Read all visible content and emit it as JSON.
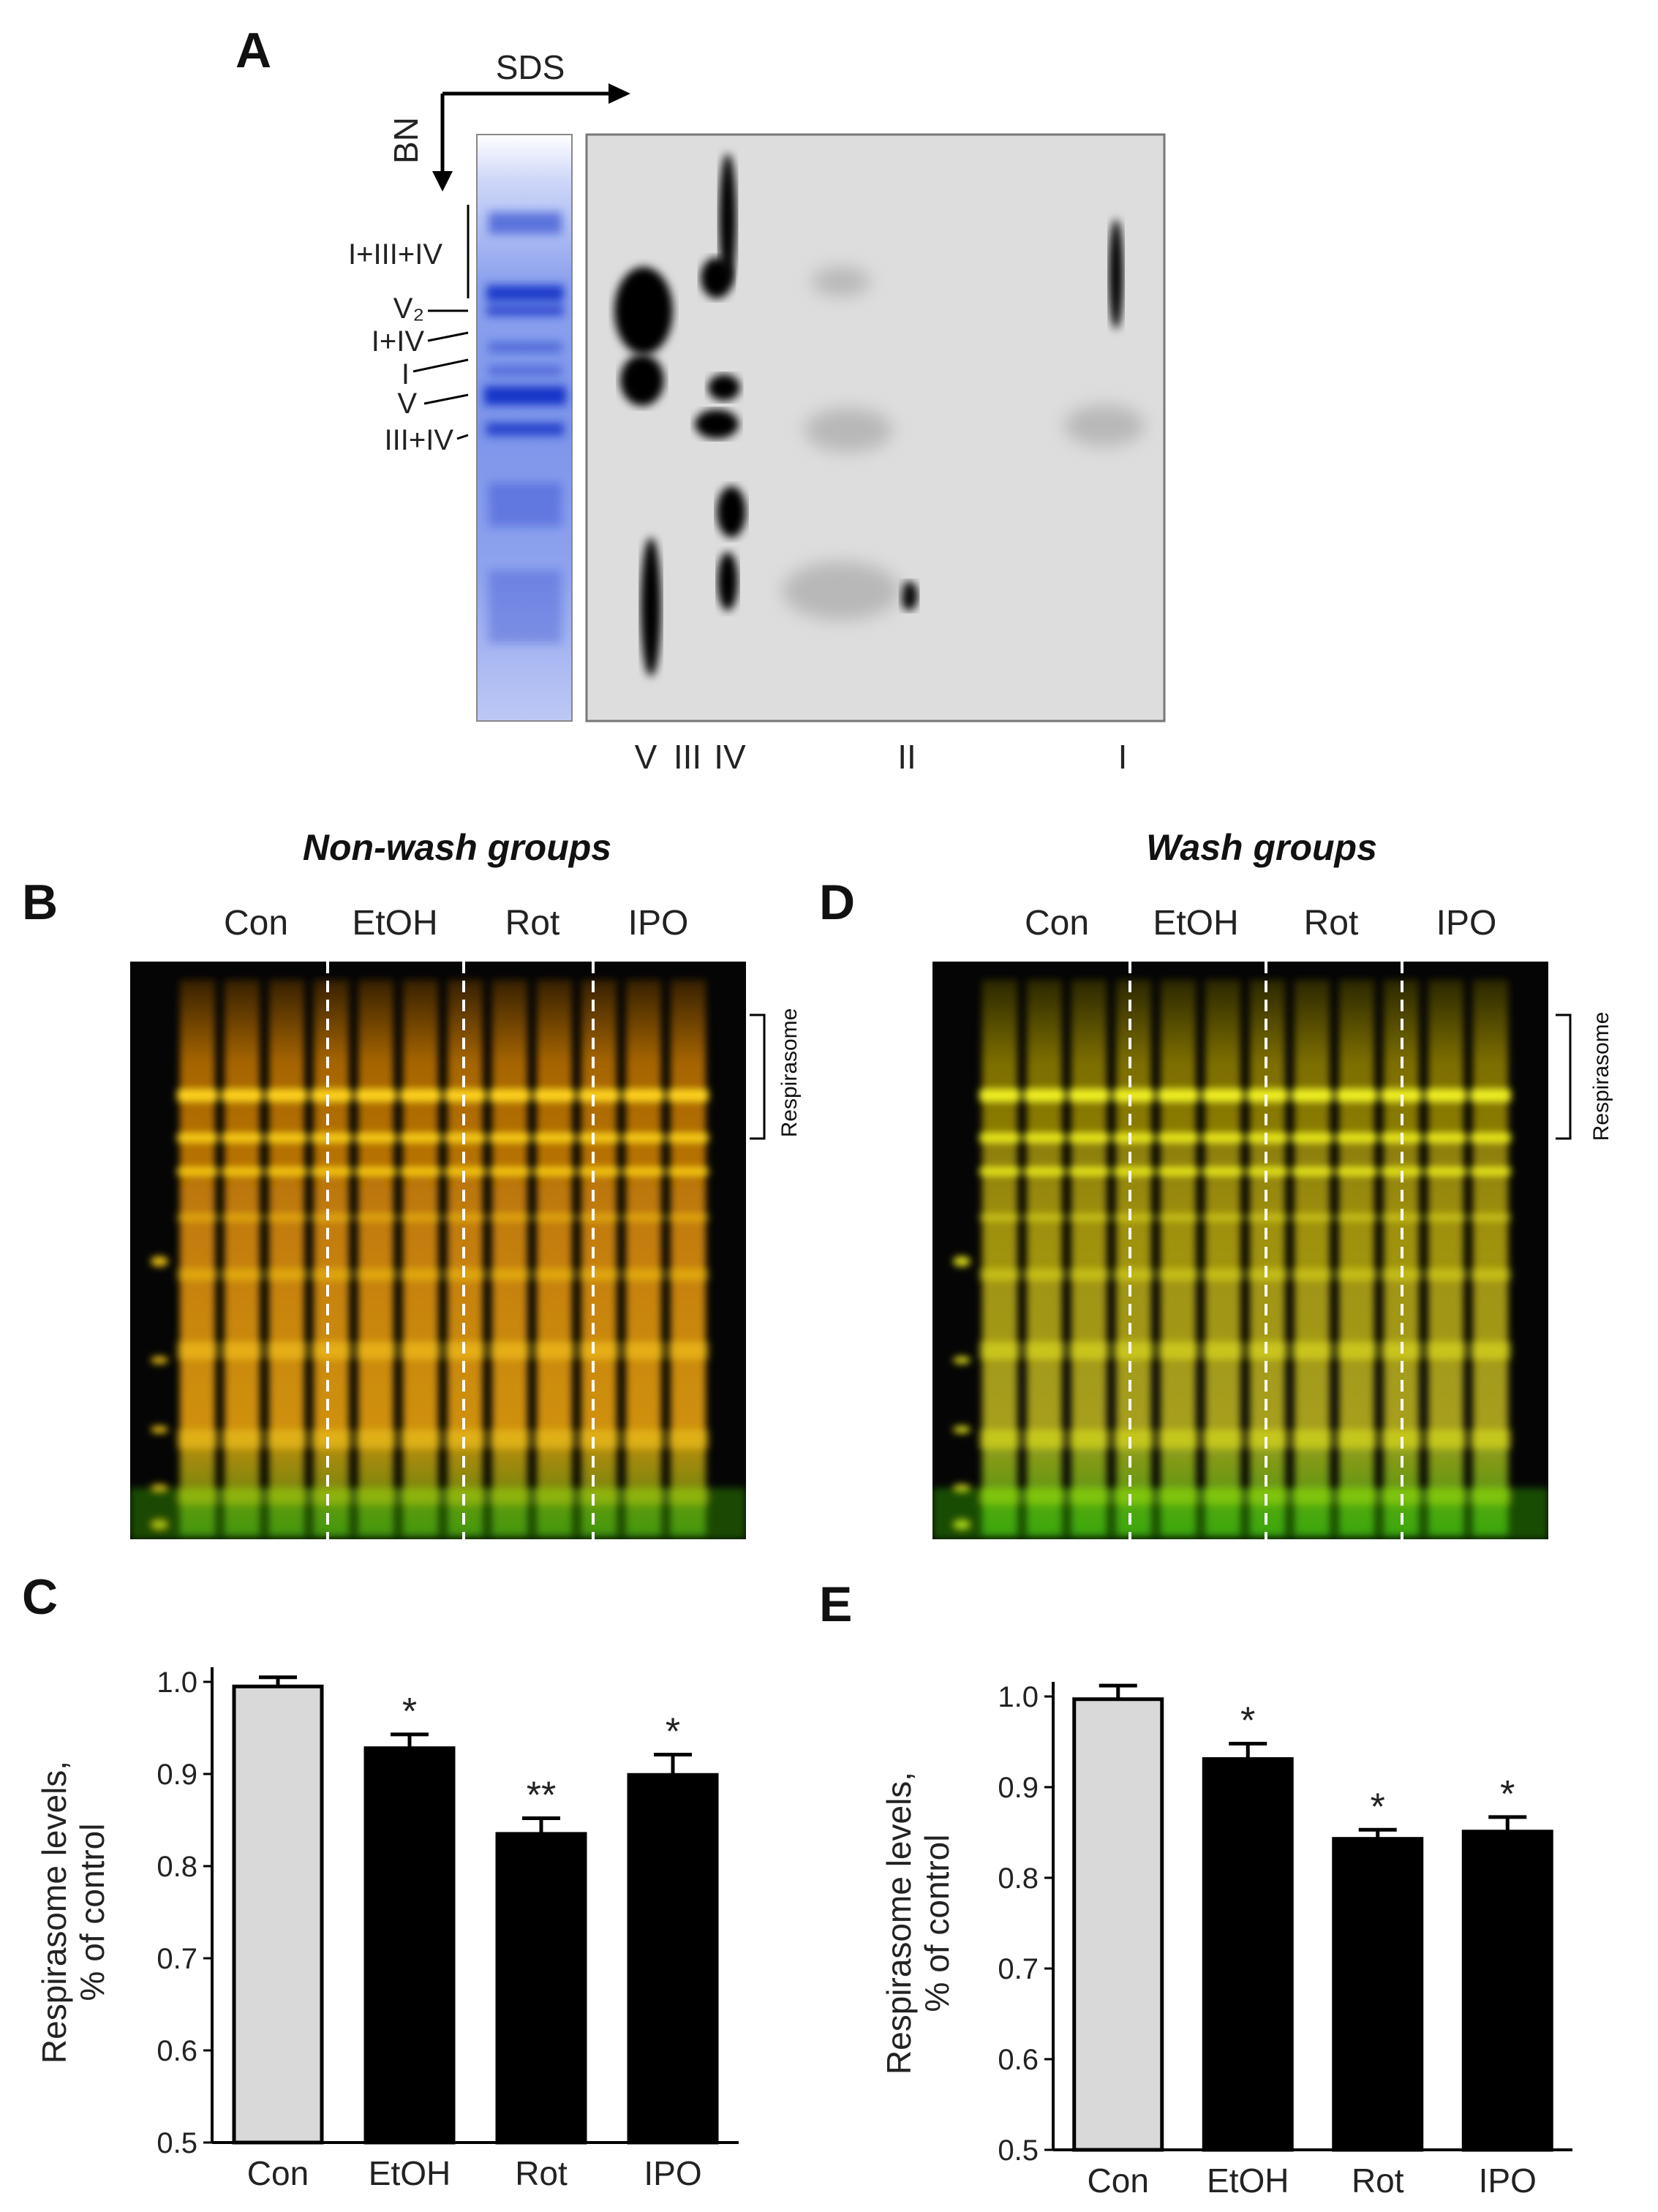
{
  "panels": {
    "A": "A",
    "B": "B",
    "C": "C",
    "D": "D",
    "E": "E"
  },
  "panel_a": {
    "sds": "SDS",
    "bn": "BN",
    "complex_labels": [
      "I+III+IV",
      "V₂",
      "I+IV",
      "I",
      "V",
      "III+IV"
    ],
    "bottom_labels": [
      "V",
      "III",
      "IV",
      "II",
      "I"
    ]
  },
  "panel_b": {
    "title": "Non-wash groups",
    "groups": [
      "Con",
      "EtOH",
      "Rot",
      "IPO"
    ],
    "bracket_label": "Respirasome"
  },
  "panel_d": {
    "title": "Wash groups",
    "groups": [
      "Con",
      "EtOH",
      "Rot",
      "IPO"
    ],
    "bracket_label": "Respirasome"
  },
  "chart_data": [
    {
      "type": "bar",
      "panel": "C",
      "categories": [
        "Con",
        "EtOH",
        "Rot",
        "IPO"
      ],
      "values": [
        0.995,
        0.928,
        0.835,
        0.899
      ],
      "errors": [
        0.01,
        0.015,
        0.017,
        0.022
      ],
      "significance": [
        "",
        "*",
        "**",
        "*"
      ],
      "colors": [
        "#d9d9d9",
        "#000000",
        "#000000",
        "#000000"
      ],
      "ylabel": "Respirasome levels,\n% of control",
      "ylim": [
        0.5,
        1.0
      ],
      "yticks": [
        "0.5",
        "0.6",
        "0.7",
        "0.8",
        "0.9",
        "1.0"
      ]
    },
    {
      "type": "bar",
      "panel": "E",
      "categories": [
        "Con",
        "EtOH",
        "Rot",
        "IPO"
      ],
      "values": [
        0.997,
        0.931,
        0.843,
        0.851
      ],
      "errors": [
        0.015,
        0.017,
        0.01,
        0.016
      ],
      "significance": [
        "",
        "*",
        "*",
        "*"
      ],
      "colors": [
        "#d9d9d9",
        "#000000",
        "#000000",
        "#000000"
      ],
      "ylabel": "Respirasome levels,\n% of control",
      "ylim": [
        0.5,
        1.0
      ],
      "yticks": [
        "0.5",
        "0.6",
        "0.7",
        "0.8",
        "0.9",
        "1.0"
      ]
    }
  ]
}
